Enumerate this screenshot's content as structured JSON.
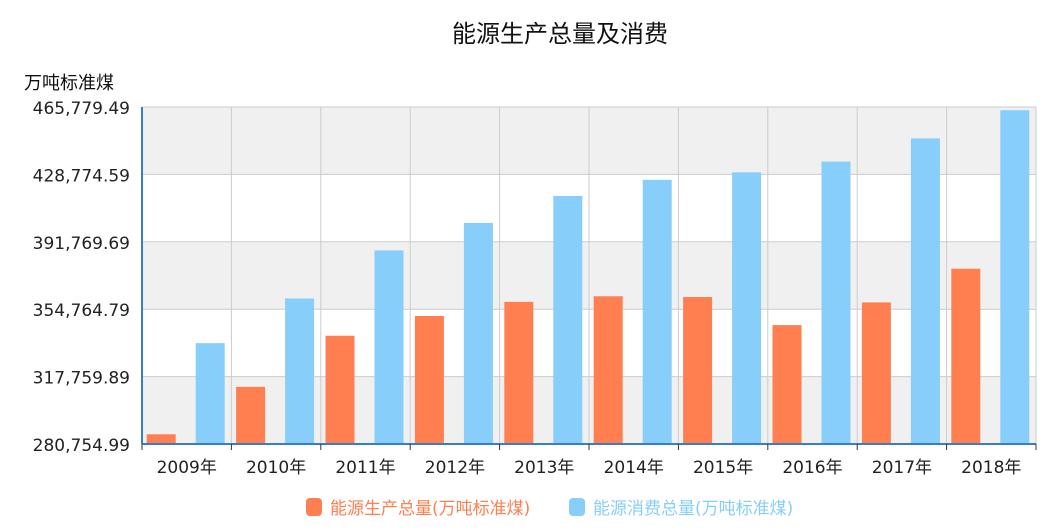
{
  "chart_data": {
    "type": "bar",
    "title": "能源生产总量及消费",
    "ylabel": "万吨标准煤",
    "xlabel": "",
    "categories": [
      "2009年",
      "2010年",
      "2011年",
      "2012年",
      "2013年",
      "2014年",
      "2015年",
      "2016年",
      "2017年",
      "2018年"
    ],
    "series": [
      {
        "name": "能源生产总量(万吨标准煤)",
        "color": "#ff7f50",
        "values": [
          286092,
          312125,
          340178,
          351041,
          358784,
          361866,
          361476,
          346037,
          358500,
          377000
        ]
      },
      {
        "name": "能源消费总量(万吨标准煤)",
        "color": "#87cefa",
        "values": [
          336126,
          360648,
          387043,
          402138,
          416913,
          425806,
          429905,
          435819,
          448529,
          464000
        ]
      }
    ],
    "ylim": [
      280754.99,
      465779.49
    ],
    "yticks": [
      "280,754.99",
      "317,759.89",
      "354,764.79",
      "391,769.69",
      "428,774.59",
      "465,779.49"
    ],
    "legend_position": "bottom-center",
    "grid": true,
    "band_colors": [
      "#f0f0f0",
      "#ffffff"
    ]
  }
}
